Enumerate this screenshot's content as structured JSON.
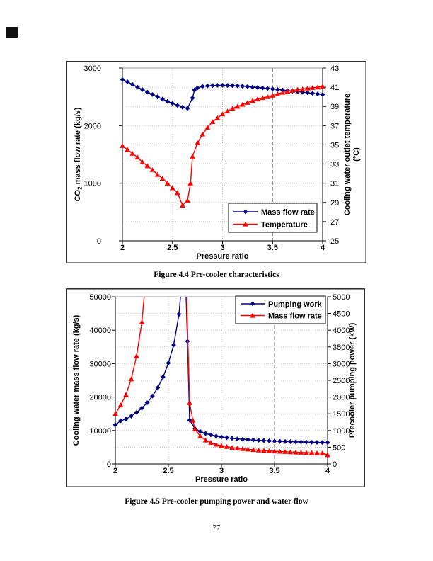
{
  "page": {
    "number": "77",
    "captions": {
      "fig44": "Figure 4.4 Pre-cooler characteristics",
      "fig45": "Figure 4.5 Pre-cooler pumping power and water flow"
    }
  },
  "colors": {
    "series_blue": "#000080",
    "series_red": "#FF0000",
    "grid": "#b0b0b0",
    "marker_line": "#7a7a7a",
    "plot_top_line": "#9a9a9a",
    "axis": "#000000",
    "frame": "#1a1a1a"
  },
  "chart_data": [
    {
      "type": "line",
      "title": "",
      "xlabel": "Pressure ratio",
      "xlim": [
        2,
        4
      ],
      "x_ticks": [
        "2",
        "2.5",
        "3",
        "3.5",
        "4"
      ],
      "grid_x": [
        2.5,
        3
      ],
      "marker_line_x": 3.5,
      "grid": "dotted horizontal at right-axis ticks, dotted vertical at 2.5 and 3, gray dashed vertical marker at 3.5",
      "y_left": {
        "label": "CO2 mass flow rate (kg/s)",
        "markup": "CO|2| mass flow rate (kg/s)",
        "lim": [
          0,
          3000
        ],
        "ticks": [
          "0",
          "1000",
          "2000",
          "3000"
        ]
      },
      "y_right": {
        "label": "Cooling water outlet temperature (°C)",
        "lines": [
          "Cooling water outlet temperature",
          "(°C)"
        ],
        "lim": [
          25,
          43
        ],
        "ticks": [
          "25",
          "27",
          "29",
          "31",
          "33",
          "35",
          "37",
          "39",
          "41",
          "43"
        ]
      },
      "legend": {
        "position": "bottom-right",
        "items": [
          {
            "label": "Mass flow rate",
            "color": "#000080",
            "marker": "diamond"
          },
          {
            "label": "Temperature",
            "color": "#FF0000",
            "marker": "triangle"
          }
        ]
      },
      "series": [
        {
          "name": "Mass flow rate",
          "axis": "left",
          "color": "#000080",
          "marker": "diamond",
          "x": [
            2,
            2.05,
            2.1,
            2.15,
            2.2,
            2.25,
            2.3,
            2.35,
            2.4,
            2.45,
            2.5,
            2.55,
            2.6,
            2.65,
            2.7,
            2.72,
            2.75,
            2.8,
            2.85,
            2.9,
            2.95,
            3,
            3.05,
            3.1,
            3.15,
            3.2,
            3.25,
            3.3,
            3.35,
            3.4,
            3.45,
            3.5,
            3.55,
            3.6,
            3.65,
            3.7,
            3.75,
            3.8,
            3.85,
            3.9,
            3.95,
            4
          ],
          "y": [
            2800,
            2760,
            2715,
            2670,
            2625,
            2580,
            2540,
            2500,
            2460,
            2420,
            2385,
            2350,
            2320,
            2300,
            2480,
            2620,
            2655,
            2680,
            2690,
            2695,
            2700,
            2700,
            2698,
            2695,
            2690,
            2685,
            2678,
            2670,
            2662,
            2653,
            2645,
            2636,
            2627,
            2618,
            2608,
            2599,
            2590,
            2580,
            2570,
            2560,
            2550,
            2540
          ]
        },
        {
          "name": "Temperature",
          "axis": "right",
          "color": "#FF0000",
          "marker": "triangle",
          "x": [
            2,
            2.05,
            2.1,
            2.15,
            2.2,
            2.25,
            2.3,
            2.35,
            2.4,
            2.45,
            2.5,
            2.55,
            2.6,
            2.65,
            2.68,
            2.7,
            2.75,
            2.8,
            2.85,
            2.9,
            2.95,
            3,
            3.05,
            3.1,
            3.15,
            3.2,
            3.25,
            3.3,
            3.35,
            3.4,
            3.45,
            3.5,
            3.55,
            3.6,
            3.65,
            3.7,
            3.75,
            3.8,
            3.85,
            3.9,
            3.95,
            4
          ],
          "y": [
            34.9,
            34.5,
            34.1,
            33.7,
            33.2,
            32.8,
            32.4,
            31.9,
            31.5,
            31,
            30.5,
            30,
            28.7,
            29.2,
            31,
            33.8,
            35.2,
            36.1,
            36.8,
            37.4,
            37.8,
            38.2,
            38.5,
            38.8,
            39,
            39.2,
            39.4,
            39.6,
            39.75,
            39.9,
            40,
            40.15,
            40.3,
            40.45,
            40.55,
            40.65,
            40.75,
            40.8,
            40.9,
            40.95,
            41,
            41.1
          ]
        }
      ]
    },
    {
      "type": "line",
      "title": "",
      "xlabel": "Pressure ratio",
      "xlim": [
        2,
        4
      ],
      "x_ticks": [
        "2",
        "2.5",
        "3",
        "3.5",
        "4"
      ],
      "grid_x": [
        2.5,
        3
      ],
      "marker_line_x": 3.5,
      "grid": "dotted horizontal at right-axis ticks, dotted vertical at 2.5 and 3, gray dashed vertical marker at 3.5",
      "y_left": {
        "label": "Cooling water mass flow rate (kg/s)",
        "markup": "Cooling water mass flow rate (kg/s)",
        "lim": [
          0,
          50000
        ],
        "ticks": [
          "0",
          "10000",
          "20000",
          "30000",
          "40000",
          "50000"
        ]
      },
      "y_right": {
        "label": "Precooler pumping power (kW)",
        "lines": [
          "Precooler pumping power (kW)"
        ],
        "lim": [
          0,
          5000
        ],
        "ticks": [
          "0",
          "500",
          "1000",
          "1500",
          "2000",
          "2500",
          "3000",
          "3500",
          "4000",
          "4500",
          "5000"
        ]
      },
      "legend": {
        "position": "top-right",
        "items": [
          {
            "label": "Pumping work",
            "color": "#000080",
            "marker": "diamond"
          },
          {
            "label": "Mass flow rate",
            "color": "#FF0000",
            "marker": "triangle"
          }
        ]
      },
      "series": [
        {
          "name": "Pumping work",
          "axis": "right",
          "color": "#000080",
          "marker": "diamond",
          "x": [
            2,
            2.05,
            2.1,
            2.15,
            2.2,
            2.25,
            2.3,
            2.35,
            2.4,
            2.45,
            2.5,
            2.55,
            2.6,
            2.63,
            2.66,
            2.68,
            2.7,
            2.75,
            2.8,
            2.85,
            2.9,
            2.95,
            3,
            3.05,
            3.1,
            3.15,
            3.2,
            3.25,
            3.3,
            3.35,
            3.4,
            3.45,
            3.5,
            3.55,
            3.6,
            3.65,
            3.7,
            3.75,
            3.8,
            3.85,
            3.9,
            3.95,
            4
          ],
          "y": [
            1170,
            1290,
            1340,
            1430,
            1540,
            1670,
            1830,
            2030,
            2280,
            2600,
            3020,
            3560,
            4480,
            5600,
            5700,
            3670,
            1310,
            1060,
            970,
            910,
            870,
            835,
            805,
            785,
            765,
            750,
            738,
            727,
            716,
            707,
            698,
            690,
            683,
            677,
            671,
            666,
            661,
            657,
            653,
            649,
            646,
            643,
            640
          ]
        },
        {
          "name": "Mass flow rate",
          "axis": "left",
          "color": "#FF0000",
          "marker": "triangle",
          "x": [
            2,
            2.05,
            2.1,
            2.15,
            2.2,
            2.25,
            2.28,
            2.64,
            2.67,
            2.7,
            2.73,
            2.75,
            2.8,
            2.85,
            2.9,
            2.95,
            3,
            3.05,
            3.1,
            3.15,
            3.2,
            3.25,
            3.3,
            3.35,
            3.4,
            3.45,
            3.5,
            3.55,
            3.6,
            3.65,
            3.7,
            3.75,
            3.8,
            3.85,
            3.9,
            3.95,
            4
          ],
          "y": [
            15000,
            17600,
            20700,
            25400,
            32300,
            42400,
            53000,
            54000,
            52000,
            18300,
            13000,
            10400,
            8300,
            7100,
            6400,
            5850,
            5450,
            5150,
            4900,
            4700,
            4520,
            4370,
            4230,
            4110,
            4000,
            3900,
            3810,
            3730,
            3650,
            3570,
            3500,
            3430,
            3370,
            3310,
            3260,
            3210,
            2700
          ]
        }
      ]
    }
  ]
}
